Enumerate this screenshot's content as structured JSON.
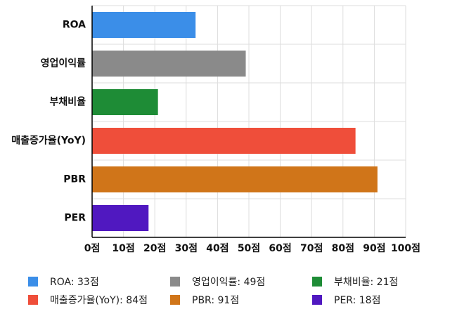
{
  "chart_data": {
    "type": "bar",
    "orientation": "horizontal",
    "categories": [
      "ROA",
      "영업이익률",
      "부채비율",
      "매출증가율(YoY)",
      "PBR",
      "PER"
    ],
    "values": [
      33,
      49,
      21,
      84,
      91,
      18
    ],
    "colors": [
      "#3b8ee8",
      "#8a8a8a",
      "#1e8c36",
      "#ef4e3a",
      "#d07519",
      "#5018c0"
    ],
    "xlim": [
      0,
      100
    ],
    "xticks": [
      0,
      10,
      20,
      30,
      40,
      50,
      60,
      70,
      80,
      90,
      100
    ],
    "tick_suffix": "점",
    "grid": true,
    "legend_position": "bottom",
    "legend": [
      {
        "label": "ROA: 33점",
        "color": "#3b8ee8"
      },
      {
        "label": "영업이익률: 49점",
        "color": "#8a8a8a"
      },
      {
        "label": "부채비율: 21점",
        "color": "#1e8c36"
      },
      {
        "label": "매출증가율(YoY): 84점",
        "color": "#ef4e3a"
      },
      {
        "label": "PBR: 91점",
        "color": "#d07519"
      },
      {
        "label": "PER: 18점",
        "color": "#5018c0"
      }
    ]
  }
}
